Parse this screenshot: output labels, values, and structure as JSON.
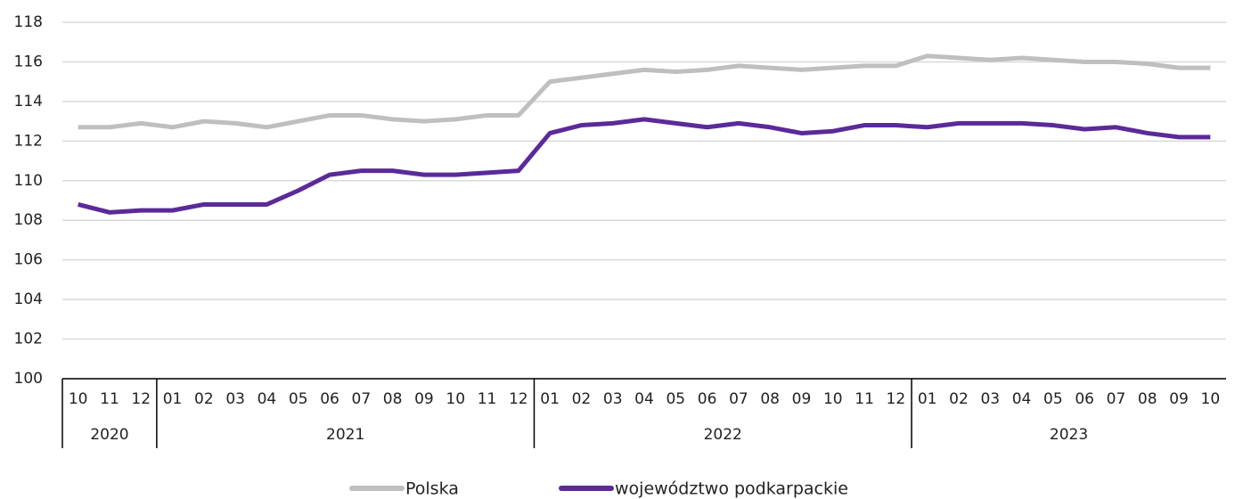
{
  "chart_data": {
    "type": "line",
    "categories": [
      "10",
      "11",
      "12",
      "01",
      "02",
      "03",
      "04",
      "05",
      "06",
      "07",
      "08",
      "09",
      "10",
      "11",
      "12",
      "01",
      "02",
      "03",
      "04",
      "05",
      "06",
      "07",
      "08",
      "09",
      "10",
      "11",
      "12",
      "01",
      "02",
      "03",
      "04",
      "05",
      "06",
      "07",
      "08",
      "09",
      "10"
    ],
    "groups": [
      "2020",
      "2021",
      "2022",
      "2023"
    ],
    "series": [
      {
        "name": "Polska",
        "color": "#bfbfbf",
        "values": [
          112.7,
          112.7,
          112.9,
          112.7,
          113.0,
          112.9,
          112.7,
          113.0,
          113.3,
          113.3,
          113.1,
          113.0,
          113.1,
          113.3,
          113.3,
          115.0,
          115.2,
          115.4,
          115.6,
          115.5,
          115.6,
          115.8,
          115.7,
          115.6,
          115.7,
          115.8,
          115.8,
          116.3,
          116.2,
          116.1,
          116.2,
          116.1,
          116.0,
          116.0,
          115.9,
          115.7,
          115.7
        ]
      },
      {
        "name": "województwo podkarpackie",
        "color": "#5b2a99",
        "values": [
          108.8,
          108.4,
          108.5,
          108.5,
          108.8,
          108.8,
          108.8,
          109.5,
          110.3,
          110.5,
          110.5,
          110.3,
          110.3,
          110.4,
          110.5,
          112.4,
          112.8,
          112.9,
          113.1,
          112.9,
          112.7,
          112.9,
          112.7,
          112.4,
          112.5,
          112.8,
          112.8,
          112.7,
          112.9,
          112.9,
          112.9,
          112.8,
          112.6,
          112.7,
          112.4,
          112.2,
          112.2
        ]
      }
    ],
    "ylim": [
      100,
      118
    ],
    "yticks": [
      100,
      102,
      104,
      106,
      108,
      110,
      112,
      114,
      116,
      118
    ],
    "grid": true
  }
}
